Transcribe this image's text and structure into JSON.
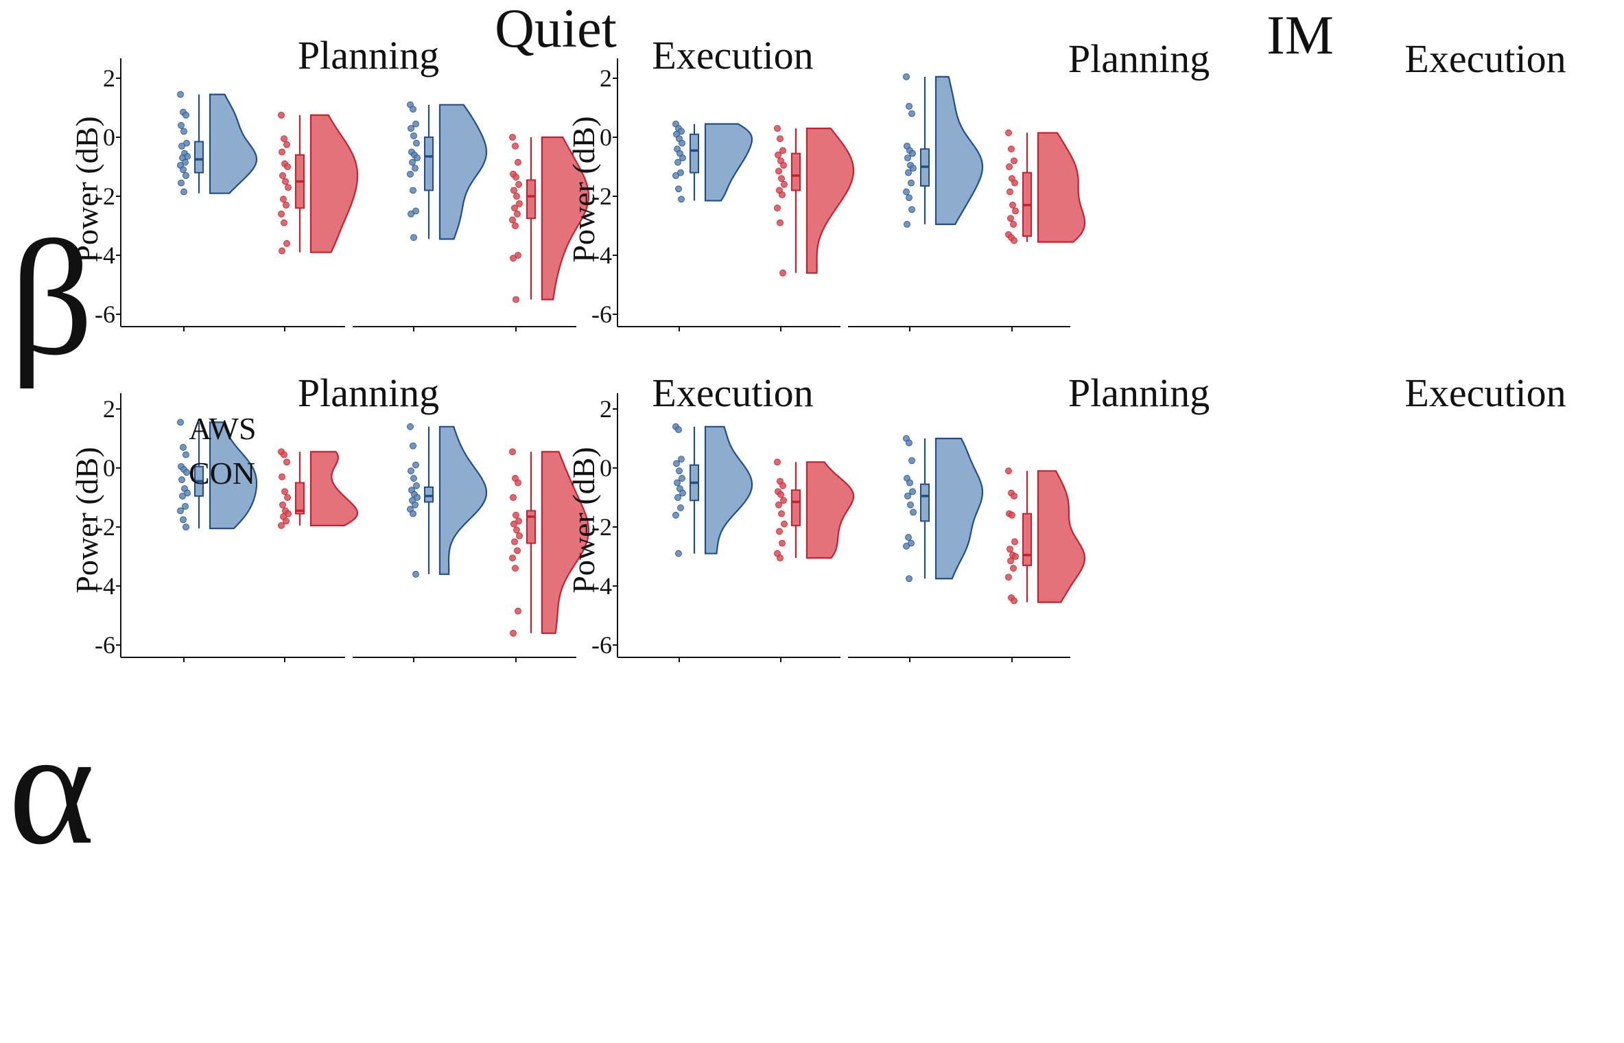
{
  "figure": {
    "conditions": [
      "Quiet",
      "IM"
    ],
    "bands": [
      "β",
      "α"
    ],
    "phases": [
      "Planning",
      "Execution"
    ],
    "y_axis_label": "Power (dB)",
    "legend": [
      {
        "label": "AWS",
        "color": "#d9636b"
      },
      {
        "label": "CON",
        "color": "#7b9fc4"
      }
    ]
  },
  "chart_data": {
    "type": "raincloud",
    "ylabel": "Power (dB)",
    "ylim": [
      -6.4,
      2.4
    ],
    "yticks": [
      2,
      0,
      -2,
      -4,
      -6
    ],
    "groups": [
      "CON",
      "AWS"
    ],
    "colors": {
      "CON": {
        "fill": "#8eaccd",
        "stroke": "#1f4e8a",
        "points": "#5b84b5"
      },
      "AWS": {
        "fill": "#e3727b",
        "stroke": "#c8202b",
        "points": "#dc4a52"
      }
    },
    "panels": [
      {
        "band": "β",
        "condition": "Quiet",
        "phase": "Planning",
        "CON": {
          "min": -1.9,
          "q1": -1.2,
          "median": -0.75,
          "q3": -0.15,
          "max": 1.45,
          "points": [
            1.45,
            0.85,
            0.75,
            0.4,
            0.2,
            -0.2,
            -0.3,
            -0.55,
            -0.65,
            -0.7,
            -0.85,
            -0.95,
            -1.1,
            -1.3,
            -1.55,
            -1.85
          ]
        },
        "AWS": {
          "min": -3.9,
          "q1": -2.4,
          "median": -1.5,
          "q3": -0.6,
          "max": 0.75,
          "points": [
            0.75,
            -0.05,
            -0.25,
            -0.5,
            -0.9,
            -1.0,
            -1.3,
            -1.5,
            -1.7,
            -2.1,
            -2.3,
            -2.6,
            -2.9,
            -3.6,
            -3.85
          ]
        }
      },
      {
        "band": "β",
        "condition": "Quiet",
        "phase": "Execution",
        "CON": {
          "min": -3.45,
          "q1": -1.8,
          "median": -0.65,
          "q3": 0.0,
          "max": 1.1,
          "points": [
            1.1,
            0.95,
            0.45,
            0.3,
            0.05,
            -0.2,
            -0.5,
            -0.6,
            -0.7,
            -0.85,
            -1.05,
            -1.25,
            -1.8,
            -2.5,
            -2.6,
            -3.4
          ]
        },
        "AWS": {
          "min": -4.1,
          "q1": -2.75,
          "median": -2.0,
          "q3": -1.45,
          "max": 0.0,
          "points": [
            0.0,
            -0.3,
            -0.85,
            -1.25,
            -1.35,
            -1.6,
            -1.8,
            -2.0,
            -2.25,
            -2.4,
            -2.6,
            -2.8,
            -3.0,
            -4.0,
            -4.1,
            -5.5
          ]
        }
      },
      {
        "band": "β",
        "condition": "IM",
        "phase": "Planning",
        "CON": {
          "min": -2.15,
          "q1": -1.2,
          "median": -0.45,
          "q3": 0.1,
          "max": 0.45,
          "points": [
            0.45,
            0.3,
            0.2,
            0.1,
            -0.05,
            -0.2,
            -0.4,
            -0.55,
            -0.7,
            -0.85,
            -1.2,
            -1.3,
            -1.75,
            -2.1
          ]
        },
        "AWS": {
          "min": -2.9,
          "q1": -1.8,
          "median": -1.3,
          "q3": -0.55,
          "max": 0.3,
          "points": [
            0.3,
            -0.05,
            -0.45,
            -0.6,
            -0.8,
            -0.95,
            -1.15,
            -1.4,
            -1.6,
            -1.8,
            -1.95,
            -2.4,
            -2.9,
            -4.6
          ]
        }
      },
      {
        "band": "β",
        "condition": "IM",
        "phase": "Execution",
        "CON": {
          "min": -2.9,
          "q1": -1.65,
          "median": -1.0,
          "q3": -0.4,
          "max": 2.05,
          "points": [
            2.05,
            1.05,
            0.8,
            -0.3,
            -0.45,
            -0.55,
            -0.7,
            -0.95,
            -1.05,
            -1.2,
            -1.55,
            -1.85,
            -2.05,
            -2.45,
            -2.95
          ]
        },
        "AWS": {
          "min": -3.55,
          "q1": -3.35,
          "median": -2.3,
          "q3": -1.2,
          "max": 0.15,
          "points": [
            0.15,
            -0.4,
            -0.8,
            -1.0,
            -1.4,
            -1.55,
            -1.85,
            -2.3,
            -2.5,
            -2.75,
            -2.95,
            -3.3,
            -3.4,
            -3.5
          ]
        }
      },
      {
        "band": "α",
        "condition": "Quiet",
        "phase": "Planning",
        "CON": {
          "min": -2.05,
          "q1": -0.95,
          "median": -0.45,
          "q3": 0.05,
          "max": 0.75,
          "points": [
            1.55,
            0.7,
            0.45,
            0.05,
            -0.05,
            -0.15,
            -0.4,
            -0.7,
            -0.85,
            -0.95,
            -1.3,
            -1.45,
            -1.75,
            -2.0
          ]
        },
        "AWS": {
          "min": -1.95,
          "q1": -1.55,
          "median": -1.45,
          "q3": -0.5,
          "max": 0.55,
          "points": [
            0.55,
            0.45,
            0.2,
            -0.3,
            -0.8,
            -1.0,
            -1.25,
            -1.45,
            -1.55,
            -1.65,
            -1.8,
            -1.95
          ]
        }
      },
      {
        "band": "α",
        "condition": "Quiet",
        "phase": "Execution",
        "CON": {
          "min": -2.05,
          "q1": -1.15,
          "median": -0.95,
          "q3": -0.65,
          "max": 1.4,
          "points": [
            1.4,
            0.75,
            0.1,
            -0.1,
            -0.35,
            -0.6,
            -0.75,
            -0.9,
            -1.0,
            -1.1,
            -1.25,
            -1.4,
            -1.55,
            -3.6
          ]
        },
        "AWS": {
          "min": -3.45,
          "q1": -2.55,
          "median": -1.65,
          "q3": -1.45,
          "max": 0.55,
          "points": [
            0.55,
            -0.35,
            -0.5,
            -1.0,
            -1.6,
            -1.8,
            -1.9,
            -2.1,
            -2.3,
            -2.5,
            -2.8,
            -3.05,
            -3.4,
            -4.85,
            -5.6
          ]
        }
      },
      {
        "band": "α",
        "condition": "IM",
        "phase": "Planning",
        "CON": {
          "min": -1.85,
          "q1": -1.1,
          "median": -0.5,
          "q3": 0.1,
          "max": 1.4,
          "points": [
            1.4,
            1.3,
            0.3,
            0.15,
            -0.1,
            -0.35,
            -0.5,
            -0.7,
            -0.85,
            -1.0,
            -1.35,
            -1.6,
            -2.9
          ]
        },
        "AWS": {
          "min": -3.05,
          "q1": -1.95,
          "median": -1.15,
          "q3": -0.75,
          "max": 0.2,
          "points": [
            0.2,
            -0.45,
            -0.6,
            -0.8,
            -0.9,
            -1.1,
            -1.25,
            -1.55,
            -1.9,
            -2.15,
            -2.55,
            -2.9,
            -3.05
          ]
        }
      },
      {
        "band": "α",
        "condition": "IM",
        "phase": "Execution",
        "CON": {
          "min": -3.75,
          "q1": -1.8,
          "median": -0.95,
          "q3": -0.55,
          "max": 1.0,
          "points": [
            1.0,
            0.85,
            0.25,
            -0.35,
            -0.5,
            -0.8,
            -0.95,
            -1.25,
            -1.5,
            -2.35,
            -2.55,
            -2.65,
            -3.75
          ]
        },
        "AWS": {
          "min": -4.55,
          "q1": -3.3,
          "median": -2.95,
          "q3": -1.55,
          "max": -0.1,
          "points": [
            -0.1,
            -0.85,
            -0.95,
            -1.55,
            -1.6,
            -2.5,
            -2.75,
            -2.95,
            -3.0,
            -3.15,
            -3.4,
            -3.7,
            -4.4,
            -4.5
          ]
        }
      }
    ]
  }
}
